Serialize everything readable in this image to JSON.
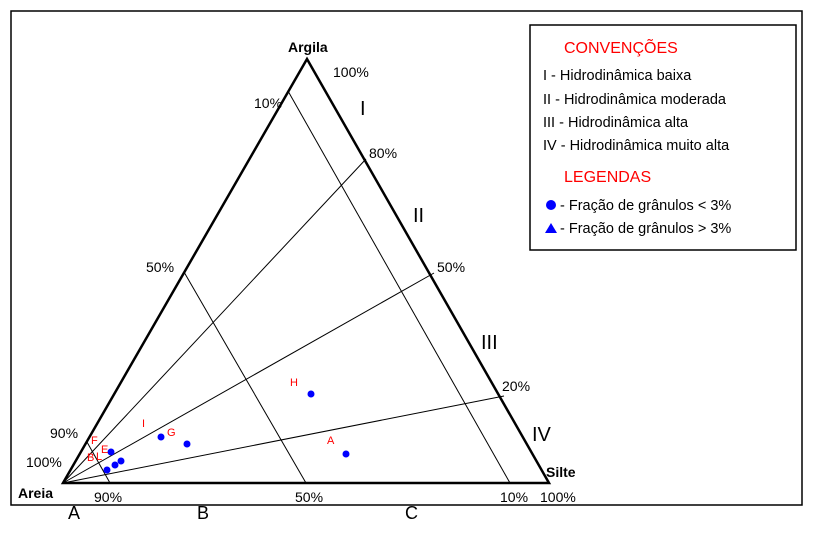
{
  "vertices": {
    "top": "Argila",
    "bottom_left": "Areia",
    "bottom_right": "Silte"
  },
  "left_edge_ticks": [
    "10%",
    "50%",
    "90%",
    "100%"
  ],
  "top_right_tick": "100%",
  "right_edge_ticks": [
    "80%",
    "50%",
    "20%"
  ],
  "bottom_ticks": [
    "90%",
    "50%",
    "10%",
    "100%"
  ],
  "zones": [
    "I",
    "II",
    "III",
    "IV"
  ],
  "bottom_regions": [
    "A",
    "B",
    "C"
  ],
  "points": [
    {
      "label": "H"
    },
    {
      "label": "A"
    },
    {
      "label": "I"
    },
    {
      "label": "G"
    },
    {
      "label": "F"
    },
    {
      "label": "E"
    },
    {
      "label": "B"
    },
    {
      "label": "L"
    },
    {
      "label": ""
    }
  ],
  "legend": {
    "conv_title": "CONVENÇÕES",
    "items": [
      "I - Hidrodinâmica baixa",
      "II - Hidrodinâmica moderada",
      "III - Hidrodinâmica alta",
      "IV - Hidrodinâmica muito alta"
    ],
    "leg_title": "LEGENDAS",
    "circle_text": " - Fração de grânulos < 3%",
    "triangle_text": " - Fração de grânulos > 3%",
    "marker_color": "#0000ff"
  }
}
